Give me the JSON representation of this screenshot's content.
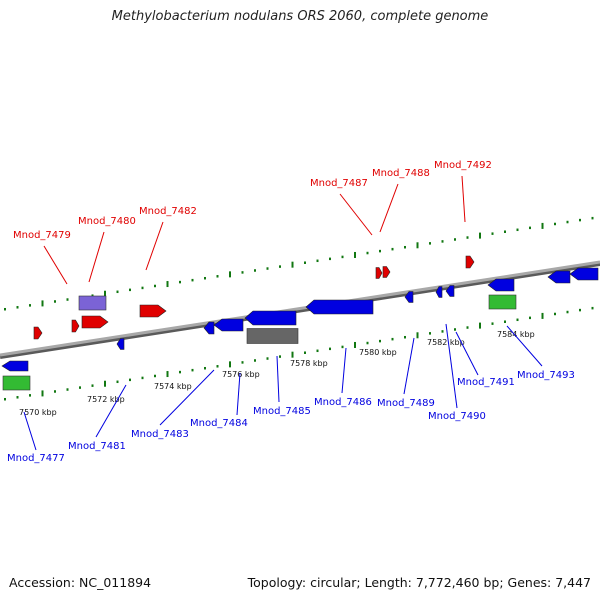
{
  "title": "Methylobacterium nodulans ORS 2060, complete genome",
  "footer": {
    "accession": "Accession: NC_011894",
    "summary": "Topology: circular; Length: 7,772,460 bp; Genes: 7,447"
  },
  "colors": {
    "forward": "#e00000",
    "reverse": "#0000e0",
    "backbone": "#888888",
    "tick": "#117711",
    "green_feature": "#33bb33",
    "purple_feature": "#7b63d6",
    "gray_feature": "#666666"
  },
  "scale_labels": [
    "7570 kbp",
    "7572 kbp",
    "7574 kbp",
    "7576 kbp",
    "7578 kbp",
    "7580 kbp",
    "7582 kbp",
    "7584 kbp"
  ],
  "forward_genes": [
    "Mnod_7479",
    "Mnod_7480",
    "Mnod_7482",
    "Mnod_7487",
    "Mnod_7488",
    "Mnod_7492"
  ],
  "reverse_genes": [
    "Mnod_7477",
    "Mnod_7481",
    "Mnod_7483",
    "Mnod_7484",
    "Mnod_7485",
    "Mnod_7486",
    "Mnod_7489",
    "Mnod_7490",
    "Mnod_7491",
    "Mnod_7493"
  ]
}
